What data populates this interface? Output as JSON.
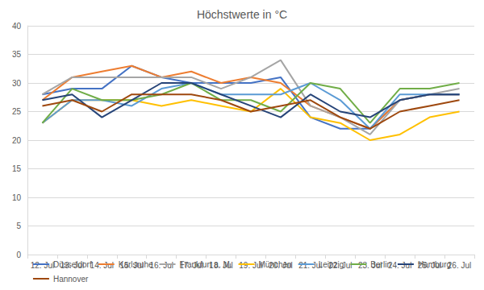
{
  "chart_data": {
    "type": "line",
    "title": "Höchstwerte in °C",
    "categories": [
      "12. Jul",
      "13. Jul",
      "14. Jul",
      "15. Jul",
      "16. Jul",
      "17. Jul",
      "18. Jul",
      "19. Jul",
      "20. Jul",
      "21. Jul",
      "22. Jul",
      "23. Jul",
      "24. Jul",
      "25. Jul",
      "26. Jul"
    ],
    "series": [
      {
        "name": "Düsseldorf",
        "color": "#4472c4",
        "values": [
          28,
          29,
          29,
          33,
          31,
          30,
          30,
          30,
          31,
          24,
          22,
          22,
          27,
          28,
          28
        ]
      },
      {
        "name": "Karlsruhe",
        "color": "#ed7d31",
        "values": [
          27,
          31,
          32,
          33,
          31,
          32,
          30,
          31,
          30,
          26,
          24,
          22,
          27,
          28,
          28
        ]
      },
      {
        "name": "Frankfurt a. M.",
        "color": "#a5a5a5",
        "values": [
          28,
          31,
          31,
          31,
          31,
          31,
          29,
          31,
          34,
          26,
          24,
          21,
          27,
          28,
          29
        ]
      },
      {
        "name": "München",
        "color": "#ffc000",
        "values": [
          23,
          27,
          27,
          27,
          26,
          27,
          26,
          25,
          29,
          24,
          23,
          20,
          21,
          24,
          25
        ]
      },
      {
        "name": "Leipzig",
        "color": "#5b9bd5",
        "values": [
          23,
          27,
          27,
          26,
          29,
          30,
          28,
          28,
          28,
          30,
          27,
          22,
          28,
          28,
          28
        ]
      },
      {
        "name": "Berlin",
        "color": "#70ad47",
        "values": [
          23,
          29,
          27,
          27,
          28,
          30,
          27,
          27,
          25,
          30,
          29,
          23,
          29,
          29,
          30
        ]
      },
      {
        "name": "Hamburg",
        "color": "#264478",
        "values": [
          27,
          28,
          24,
          27,
          30,
          30,
          28,
          26,
          24,
          28,
          25,
          24,
          27,
          28,
          28
        ]
      },
      {
        "name": "Hannover",
        "color": "#9e480e",
        "values": [
          26,
          27,
          25,
          28,
          28,
          28,
          27,
          25,
          26,
          27,
          24,
          22,
          25,
          26,
          27
        ]
      }
    ],
    "ylim": [
      0,
      40
    ],
    "yticks": [
      0,
      5,
      10,
      15,
      20,
      25,
      30,
      35,
      40
    ],
    "grid": true,
    "legend": "bottom"
  }
}
